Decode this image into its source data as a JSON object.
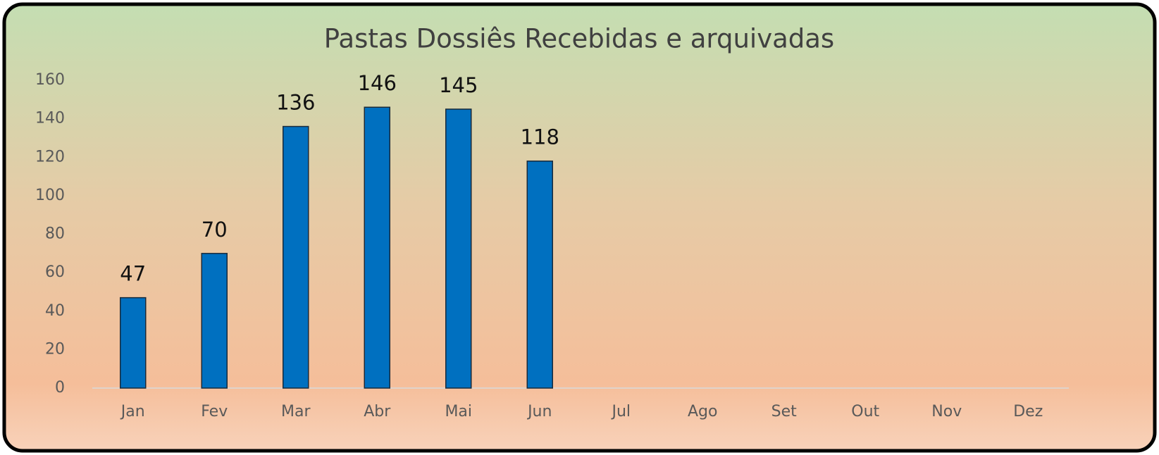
{
  "chart_data": {
    "type": "bar",
    "title": "Pastas Dossiês Recebidas e arquivadas",
    "categories": [
      "Jan",
      "Fev",
      "Mar",
      "Abr",
      "Mai",
      "Jun",
      "Jul",
      "Ago",
      "Set",
      "Out",
      "Nov",
      "Dez"
    ],
    "values": [
      47,
      70,
      136,
      146,
      145,
      118,
      null,
      null,
      null,
      null,
      null,
      null
    ],
    "color": "#0070c0",
    "ylim": [
      0,
      160
    ],
    "yticks": [
      0,
      20,
      40,
      60,
      80,
      100,
      120,
      140,
      160
    ],
    "grid": false
  }
}
